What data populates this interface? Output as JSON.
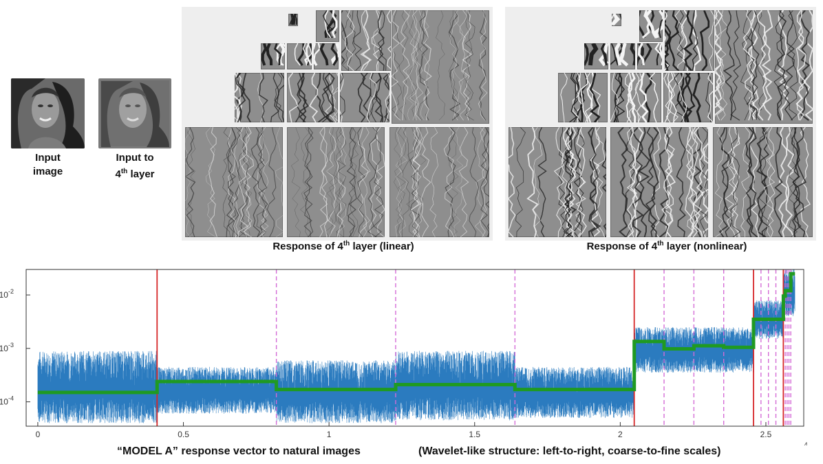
{
  "figure": {
    "input_image_caption": [
      "Input",
      "image"
    ],
    "layer_input_caption": {
      "prefix": "Input to",
      "ordinal_num": "4",
      "ordinal_suffix": "th",
      "rest": " layer"
    },
    "linear_panel_caption": {
      "prefix": "Response of 4",
      "sup": "th",
      "rest": " layer (linear)"
    },
    "nonlinear_panel_caption": {
      "prefix": "Response of 4",
      "sup": "th",
      "rest": " layer (nonlinear)"
    },
    "bottom_caption_left": "“MODEL A” response vector to natural images",
    "bottom_caption_right": "(Wavelet-like structure: left-to-right, coarse-to-fine scales)"
  },
  "chart_data": {
    "type": "line",
    "xlabel": "",
    "ylabel": "",
    "y_scale": "log",
    "ylim": [
      3.5e-05,
      0.03
    ],
    "xlim": [
      -400,
      26300
    ],
    "x_multiplier_label": "×10",
    "x_multiplier_exp": "4",
    "x_ticks": [
      0,
      5000,
      10000,
      15000,
      20000,
      25000
    ],
    "x_tick_labels": [
      "0",
      "0.5",
      "1",
      "1.5",
      "2",
      "2.5"
    ],
    "y_ticks": [
      0.0001,
      0.001,
      0.01
    ],
    "y_tick_labels": [
      {
        "base": "10",
        "exp": "-4"
      },
      {
        "base": "10",
        "exp": "-3"
      },
      {
        "base": "10",
        "exp": "-2"
      }
    ],
    "grid": false,
    "legend": "none",
    "colors": {
      "signal": "#2b7bbf",
      "envelope": "#1f9a22",
      "solid_boundary": "#d62728",
      "dashed_boundary": "#d46bd6"
    },
    "solid_boundaries": [
      4096,
      20480,
      24576,
      25600
    ],
    "dashed_boundaries": [
      8192,
      12288,
      16384,
      21504,
      22528,
      23552,
      24832,
      25088,
      25344,
      25664,
      25728,
      25792,
      25856
    ],
    "envelope_steps": [
      {
        "x0": 0,
        "x1": 4096,
        "y": 0.00015
      },
      {
        "x0": 4096,
        "x1": 8192,
        "y": 0.00024
      },
      {
        "x0": 8192,
        "x1": 12288,
        "y": 0.00017
      },
      {
        "x0": 12288,
        "x1": 16384,
        "y": 0.00021
      },
      {
        "x0": 16384,
        "x1": 20480,
        "y": 0.00017
      },
      {
        "x0": 20480,
        "x1": 21504,
        "y": 0.00135
      },
      {
        "x0": 21504,
        "x1": 22528,
        "y": 0.00098
      },
      {
        "x0": 22528,
        "x1": 23552,
        "y": 0.00112
      },
      {
        "x0": 23552,
        "x1": 24576,
        "y": 0.00105
      },
      {
        "x0": 24576,
        "x1": 25600,
        "y": 0.0035
      },
      {
        "x0": 25600,
        "x1": 25664,
        "y": 0.0095
      },
      {
        "x0": 25664,
        "x1": 25856,
        "y": 0.012
      },
      {
        "x0": 25856,
        "x1": 26000,
        "y": 0.025
      }
    ],
    "signal_bands": [
      {
        "x0": 0,
        "x1": 4096,
        "low": 4e-05,
        "high": 0.0009
      },
      {
        "x0": 4096,
        "x1": 8192,
        "low": 6e-05,
        "high": 0.00045
      },
      {
        "x0": 8192,
        "x1": 12288,
        "low": 4e-05,
        "high": 0.0006
      },
      {
        "x0": 12288,
        "x1": 16384,
        "low": 4.5e-05,
        "high": 0.0009
      },
      {
        "x0": 16384,
        "x1": 20480,
        "low": 5e-05,
        "high": 0.00045
      },
      {
        "x0": 20480,
        "x1": 24576,
        "low": 0.00035,
        "high": 0.0025
      },
      {
        "x0": 24576,
        "x1": 25600,
        "low": 0.0015,
        "high": 0.008
      },
      {
        "x0": 25600,
        "x1": 26000,
        "low": 0.004,
        "high": 0.03
      }
    ]
  }
}
